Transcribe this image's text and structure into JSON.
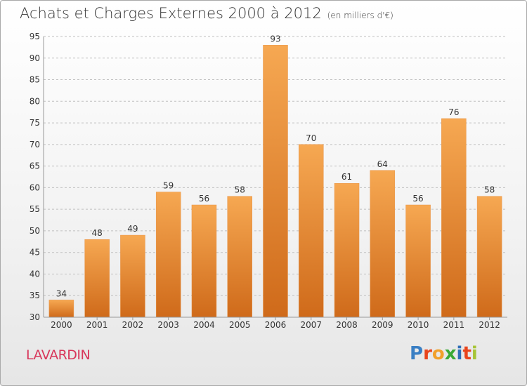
{
  "header": {
    "title": "Achats et Charges Externes 2000 à 2012",
    "subtitle": "(en milliers d'€)"
  },
  "footer": {
    "place": "LAVARDIN",
    "brand_letters": [
      "P",
      "r",
      "o",
      "x",
      "i",
      "t",
      "i"
    ],
    "brand_colors": [
      "#3a7fc4",
      "#e9441c",
      "#f1a02a",
      "#3aa935",
      "#2e6fb7",
      "#e9441c",
      "#a6c436"
    ]
  },
  "colors": {
    "bar_top": "#f6a852",
    "bar_bottom": "#cf6a1a",
    "grid": "#c0c0c0",
    "axis_text": "#333333"
  },
  "chart_data": {
    "type": "bar",
    "title": "Achats et Charges Externes 2000 à 2012",
    "subtitle": "(en milliers d'€)",
    "categories": [
      "2000",
      "2001",
      "2002",
      "2003",
      "2004",
      "2005",
      "2006",
      "2007",
      "2008",
      "2009",
      "2010",
      "2011",
      "2012"
    ],
    "values": [
      34,
      48,
      49,
      59,
      56,
      58,
      93,
      70,
      61,
      64,
      56,
      76,
      58
    ],
    "ylim": [
      30,
      95
    ],
    "yticks": [
      30,
      35,
      40,
      45,
      50,
      55,
      60,
      65,
      70,
      75,
      80,
      85,
      90,
      95
    ],
    "grid": true,
    "xlabel": "",
    "ylabel": ""
  }
}
